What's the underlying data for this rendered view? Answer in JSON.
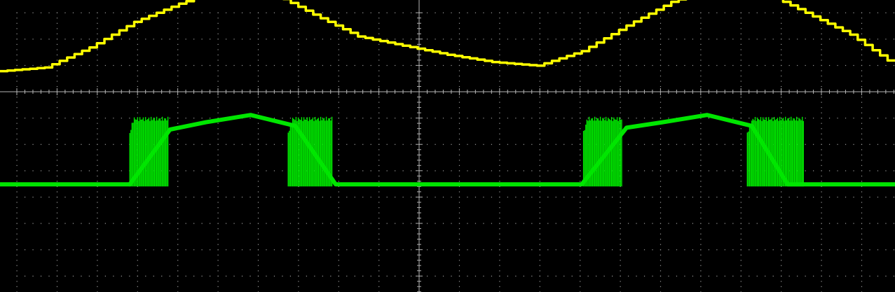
{
  "chart_data": {
    "type": "line",
    "title": "",
    "xlabel": "",
    "ylabel": "",
    "grid": true,
    "divisions": {
      "x": 10,
      "y": 8
    },
    "xlim": [
      0,
      10
    ],
    "ylim": [
      -4,
      4
    ],
    "series": [
      {
        "color": "#ffff00",
        "style": "stepped",
        "x": [
          0,
          0.5,
          1.0,
          1.5,
          2.0,
          2.5,
          3.0,
          3.5,
          4.0,
          4.5,
          5.0,
          5.5,
          6.0,
          6.5,
          7.0,
          7.5,
          8.0,
          8.5,
          9.0,
          9.5,
          10.0
        ],
        "y": [
          2.05,
          2.15,
          2.7,
          3.4,
          3.9,
          4.3,
          4.24,
          3.6,
          3.0,
          2.75,
          2.5,
          2.3,
          2.2,
          2.6,
          3.3,
          3.95,
          4.35,
          4.25,
          3.65,
          3.05,
          2.2
        ]
      },
      {
        "color": "#00e600",
        "style": "baseline-with-bursts",
        "baseline": -1.05,
        "x": [
          0,
          1.45,
          1.9,
          2.3,
          2.8,
          3.3,
          3.75,
          5.0,
          6.5,
          7.0,
          7.4,
          7.9,
          8.4,
          8.8,
          9.0,
          10.0
        ],
        "y": [
          -1.05,
          -1.05,
          0.45,
          0.65,
          0.85,
          0.55,
          -1.05,
          -1.05,
          -1.05,
          0.5,
          0.65,
          0.85,
          0.55,
          -1.05,
          -1.05,
          -1.05
        ],
        "bursts": [
          {
            "x_start": 1.45,
            "x_end": 1.88,
            "y_high": 0.8
          },
          {
            "x_start": 3.22,
            "x_end": 3.72,
            "y_high": 0.8
          },
          {
            "x_start": 6.52,
            "x_end": 6.95,
            "y_high": 0.8
          },
          {
            "x_start": 8.35,
            "x_end": 8.98,
            "y_high": 0.8
          }
        ]
      }
    ]
  },
  "colors": {
    "background": "#000000",
    "grid": "#9a9a9a",
    "axis": "#b4b4b4",
    "channel_1": "#ffff00",
    "channel_2": "#00e600"
  }
}
